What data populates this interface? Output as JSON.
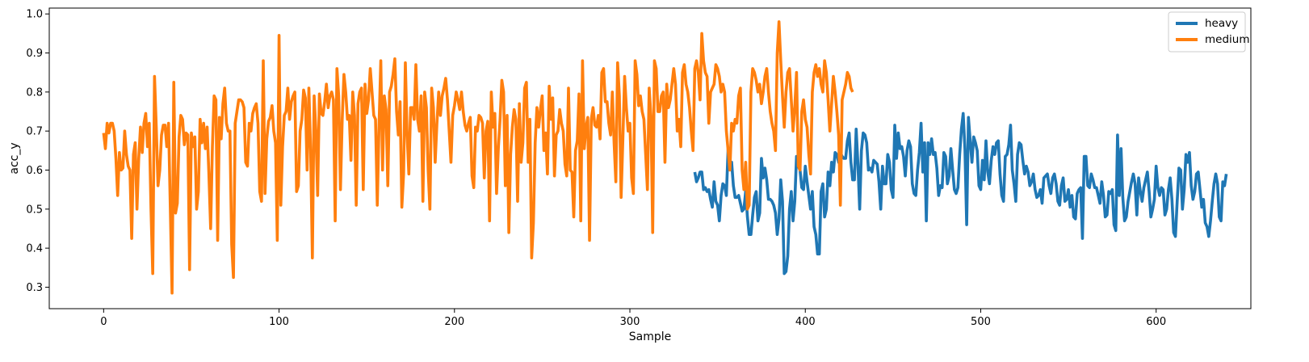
{
  "chart_data": {
    "type": "line",
    "title": "",
    "xlabel": "Sample",
    "ylabel": "acc_y",
    "xlim": [
      -31,
      654
    ],
    "ylim": [
      0.245,
      1.015
    ],
    "xticks": [
      0,
      100,
      200,
      300,
      400,
      500,
      600
    ],
    "yticks": [
      0.3,
      0.4,
      0.5,
      0.6,
      0.7,
      0.8,
      0.9,
      1.0
    ],
    "xtick_labels": [
      "0",
      "100",
      "200",
      "300",
      "400",
      "500",
      "600"
    ],
    "ytick_labels": [
      "0.3",
      "0.4",
      "0.5",
      "0.6",
      "0.7",
      "0.8",
      "0.9",
      "1.0"
    ],
    "grid": false,
    "legend": "top-right",
    "series": [
      {
        "name": "heavy",
        "color": "#1f77b4",
        "x_start": 337,
        "values": [
          0.595,
          0.57,
          0.58,
          0.595,
          0.595,
          0.55,
          0.555,
          0.545,
          0.55,
          0.525,
          0.505,
          0.57,
          0.52,
          0.51,
          0.47,
          0.535,
          0.565,
          0.56,
          0.535,
          0.655,
          0.62,
          0.62,
          0.56,
          0.53,
          0.53,
          0.535,
          0.515,
          0.495,
          0.5,
          0.545,
          0.48,
          0.435,
          0.435,
          0.485,
          0.53,
          0.545,
          0.47,
          0.49,
          0.63,
          0.58,
          0.605,
          0.575,
          0.525,
          0.525,
          0.52,
          0.51,
          0.49,
          0.435,
          0.475,
          0.575,
          0.52,
          0.335,
          0.34,
          0.38,
          0.5,
          0.545,
          0.47,
          0.52,
          0.635,
          0.61,
          0.6,
          0.555,
          0.55,
          0.61,
          0.57,
          0.535,
          0.5,
          0.545,
          0.455,
          0.435,
          0.385,
          0.385,
          0.545,
          0.565,
          0.48,
          0.5,
          0.595,
          0.56,
          0.62,
          0.595,
          0.645,
          0.64,
          0.62,
          0.645,
          0.635,
          0.63,
          0.63,
          0.675,
          0.695,
          0.62,
          0.575,
          0.575,
          0.705,
          0.615,
          0.5,
          0.65,
          0.695,
          0.69,
          0.67,
          0.6,
          0.605,
          0.595,
          0.625,
          0.62,
          0.615,
          0.57,
          0.5,
          0.61,
          0.565,
          0.565,
          0.64,
          0.62,
          0.55,
          0.53,
          0.715,
          0.63,
          0.695,
          0.655,
          0.66,
          0.635,
          0.585,
          0.65,
          0.675,
          0.66,
          0.565,
          0.54,
          0.535,
          0.6,
          0.645,
          0.72,
          0.595,
          0.67,
          0.47,
          0.67,
          0.64,
          0.68,
          0.64,
          0.645,
          0.605,
          0.535,
          0.56,
          0.555,
          0.645,
          0.635,
          0.565,
          0.585,
          0.655,
          0.6,
          0.55,
          0.54,
          0.555,
          0.64,
          0.705,
          0.745,
          0.655,
          0.46,
          0.735,
          0.675,
          0.62,
          0.685,
          0.67,
          0.65,
          0.56,
          0.55,
          0.625,
          0.575,
          0.675,
          0.595,
          0.565,
          0.625,
          0.66,
          0.64,
          0.67,
          0.675,
          0.59,
          0.535,
          0.52,
          0.635,
          0.64,
          0.665,
          0.715,
          0.6,
          0.565,
          0.52,
          0.64,
          0.67,
          0.665,
          0.625,
          0.59,
          0.61,
          0.595,
          0.56,
          0.57,
          0.59,
          0.55,
          0.53,
          0.535,
          0.55,
          0.515,
          0.58,
          0.585,
          0.59,
          0.56,
          0.54,
          0.58,
          0.59,
          0.565,
          0.52,
          0.51,
          0.56,
          0.58,
          0.52,
          0.525,
          0.55,
          0.505,
          0.535,
          0.48,
          0.475,
          0.54,
          0.55,
          0.555,
          0.425,
          0.635,
          0.635,
          0.56,
          0.555,
          0.59,
          0.575,
          0.555,
          0.555,
          0.535,
          0.515,
          0.57,
          0.535,
          0.48,
          0.485,
          0.545,
          0.54,
          0.55,
          0.46,
          0.445,
          0.69,
          0.535,
          0.655,
          0.53,
          0.47,
          0.48,
          0.52,
          0.545,
          0.57,
          0.59,
          0.565,
          0.485,
          0.58,
          0.545,
          0.52,
          0.555,
          0.575,
          0.595,
          0.545,
          0.48,
          0.5,
          0.525,
          0.61,
          0.555,
          0.535,
          0.555,
          0.55,
          0.485,
          0.5,
          0.55,
          0.58,
          0.525,
          0.44,
          0.43,
          0.52,
          0.605,
          0.6,
          0.5,
          0.55,
          0.64,
          0.62,
          0.645,
          0.56,
          0.525,
          0.545,
          0.59,
          0.595,
          0.55,
          0.505,
          0.525,
          0.465,
          0.455,
          0.43,
          0.47,
          0.52,
          0.565,
          0.59,
          0.565,
          0.48,
          0.47,
          0.57,
          0.56,
          0.59
        ]
      },
      {
        "name": "medium",
        "color": "#ff7f0e",
        "x_start": 0,
        "values": [
          0.695,
          0.655,
          0.72,
          0.695,
          0.72,
          0.72,
          0.7,
          0.63,
          0.535,
          0.645,
          0.6,
          0.605,
          0.7,
          0.64,
          0.61,
          0.6,
          0.425,
          0.64,
          0.67,
          0.5,
          0.63,
          0.71,
          0.645,
          0.72,
          0.745,
          0.66,
          0.72,
          0.5,
          0.335,
          0.84,
          0.71,
          0.56,
          0.6,
          0.69,
          0.715,
          0.715,
          0.66,
          0.72,
          0.505,
          0.285,
          0.825,
          0.49,
          0.515,
          0.685,
          0.74,
          0.73,
          0.665,
          0.695,
          0.69,
          0.345,
          0.695,
          0.66,
          0.685,
          0.5,
          0.545,
          0.73,
          0.67,
          0.72,
          0.655,
          0.71,
          0.59,
          0.45,
          0.66,
          0.79,
          0.78,
          0.42,
          0.735,
          0.68,
          0.77,
          0.81,
          0.72,
          0.7,
          0.7,
          0.41,
          0.325,
          0.72,
          0.75,
          0.78,
          0.78,
          0.775,
          0.76,
          0.62,
          0.61,
          0.72,
          0.7,
          0.745,
          0.76,
          0.77,
          0.72,
          0.545,
          0.52,
          0.88,
          0.54,
          0.68,
          0.725,
          0.735,
          0.765,
          0.7,
          0.67,
          0.42,
          0.945,
          0.51,
          0.66,
          0.74,
          0.75,
          0.81,
          0.73,
          0.775,
          0.79,
          0.8,
          0.545,
          0.56,
          0.7,
          0.73,
          0.805,
          0.785,
          0.6,
          0.81,
          0.65,
          0.375,
          0.79,
          0.7,
          0.535,
          0.795,
          0.745,
          0.74,
          0.775,
          0.82,
          0.76,
          0.79,
          0.8,
          0.78,
          0.47,
          0.86,
          0.79,
          0.55,
          0.73,
          0.845,
          0.8,
          0.73,
          0.74,
          0.625,
          0.8,
          0.74,
          0.51,
          0.77,
          0.8,
          0.81,
          0.55,
          0.82,
          0.745,
          0.78,
          0.86,
          0.8,
          0.74,
          0.73,
          0.51,
          0.715,
          0.88,
          0.6,
          0.79,
          0.755,
          0.56,
          0.8,
          0.815,
          0.845,
          0.885,
          0.75,
          0.69,
          0.775,
          0.505,
          0.59,
          0.875,
          0.69,
          0.59,
          0.76,
          0.76,
          0.73,
          0.87,
          0.73,
          0.7,
          0.79,
          0.52,
          0.8,
          0.76,
          0.6,
          0.5,
          0.81,
          0.76,
          0.62,
          0.72,
          0.8,
          0.74,
          0.79,
          0.81,
          0.835,
          0.78,
          0.7,
          0.62,
          0.74,
          0.765,
          0.8,
          0.78,
          0.755,
          0.8,
          0.75,
          0.715,
          0.7,
          0.72,
          0.735,
          0.585,
          0.555,
          0.71,
          0.7,
          0.74,
          0.735,
          0.72,
          0.58,
          0.7,
          0.725,
          0.47,
          0.8,
          0.71,
          0.745,
          0.54,
          0.655,
          0.73,
          0.83,
          0.8,
          0.56,
          0.74,
          0.44,
          0.64,
          0.71,
          0.755,
          0.73,
          0.52,
          0.77,
          0.62,
          0.67,
          0.81,
          0.825,
          0.62,
          0.73,
          0.375,
          0.465,
          0.67,
          0.76,
          0.71,
          0.755,
          0.79,
          0.65,
          0.695,
          0.59,
          0.815,
          0.73,
          0.785,
          0.585,
          0.69,
          0.7,
          0.755,
          0.72,
          0.7,
          0.615,
          0.585,
          0.81,
          0.6,
          0.595,
          0.48,
          0.65,
          0.675,
          0.795,
          0.47,
          0.88,
          0.655,
          0.71,
          0.735,
          0.42,
          0.73,
          0.76,
          0.715,
          0.71,
          0.74,
          0.68,
          0.85,
          0.86,
          0.775,
          0.775,
          0.72,
          0.69,
          0.8,
          0.67,
          0.57,
          0.875,
          0.79,
          0.53,
          0.68,
          0.84,
          0.76,
          0.7,
          0.72,
          0.58,
          0.54,
          0.88,
          0.845,
          0.765,
          0.79,
          0.75,
          0.73,
          0.64,
          0.55,
          0.81,
          0.74,
          0.44,
          0.88,
          0.86,
          0.75,
          0.75,
          0.79,
          0.8,
          0.62,
          0.82,
          0.76,
          0.78,
          0.82,
          0.86,
          0.82,
          0.7,
          0.73,
          0.66,
          0.85,
          0.87,
          0.82,
          0.8,
          0.76,
          0.7,
          0.65,
          0.86,
          0.88,
          0.85,
          0.78,
          0.95,
          0.88,
          0.85,
          0.84,
          0.72,
          0.8,
          0.81,
          0.82,
          0.87,
          0.86,
          0.84,
          0.8,
          0.82,
          0.8,
          0.7,
          0.65,
          0.6,
          0.72,
          0.7,
          0.73,
          0.72,
          0.79,
          0.81,
          0.6,
          0.55,
          0.62,
          0.5,
          0.51,
          0.8,
          0.86,
          0.85,
          0.83,
          0.8,
          0.82,
          0.77,
          0.8,
          0.84,
          0.86,
          0.8,
          0.75,
          0.72,
          0.7,
          0.65,
          0.9,
          0.98,
          0.88,
          0.79,
          0.71,
          0.8,
          0.85,
          0.86,
          0.78,
          0.7,
          0.76,
          0.85,
          0.61,
          0.6,
          0.75,
          0.78,
          0.73,
          0.71,
          0.64,
          0.59,
          0.8,
          0.85,
          0.87,
          0.84,
          0.86,
          0.82,
          0.8,
          0.88,
          0.85,
          0.78,
          0.7,
          0.77,
          0.84,
          0.8,
          0.75,
          0.69,
          0.51,
          0.78,
          0.8,
          0.82,
          0.85,
          0.84,
          0.81,
          0.8
        ]
      }
    ]
  }
}
